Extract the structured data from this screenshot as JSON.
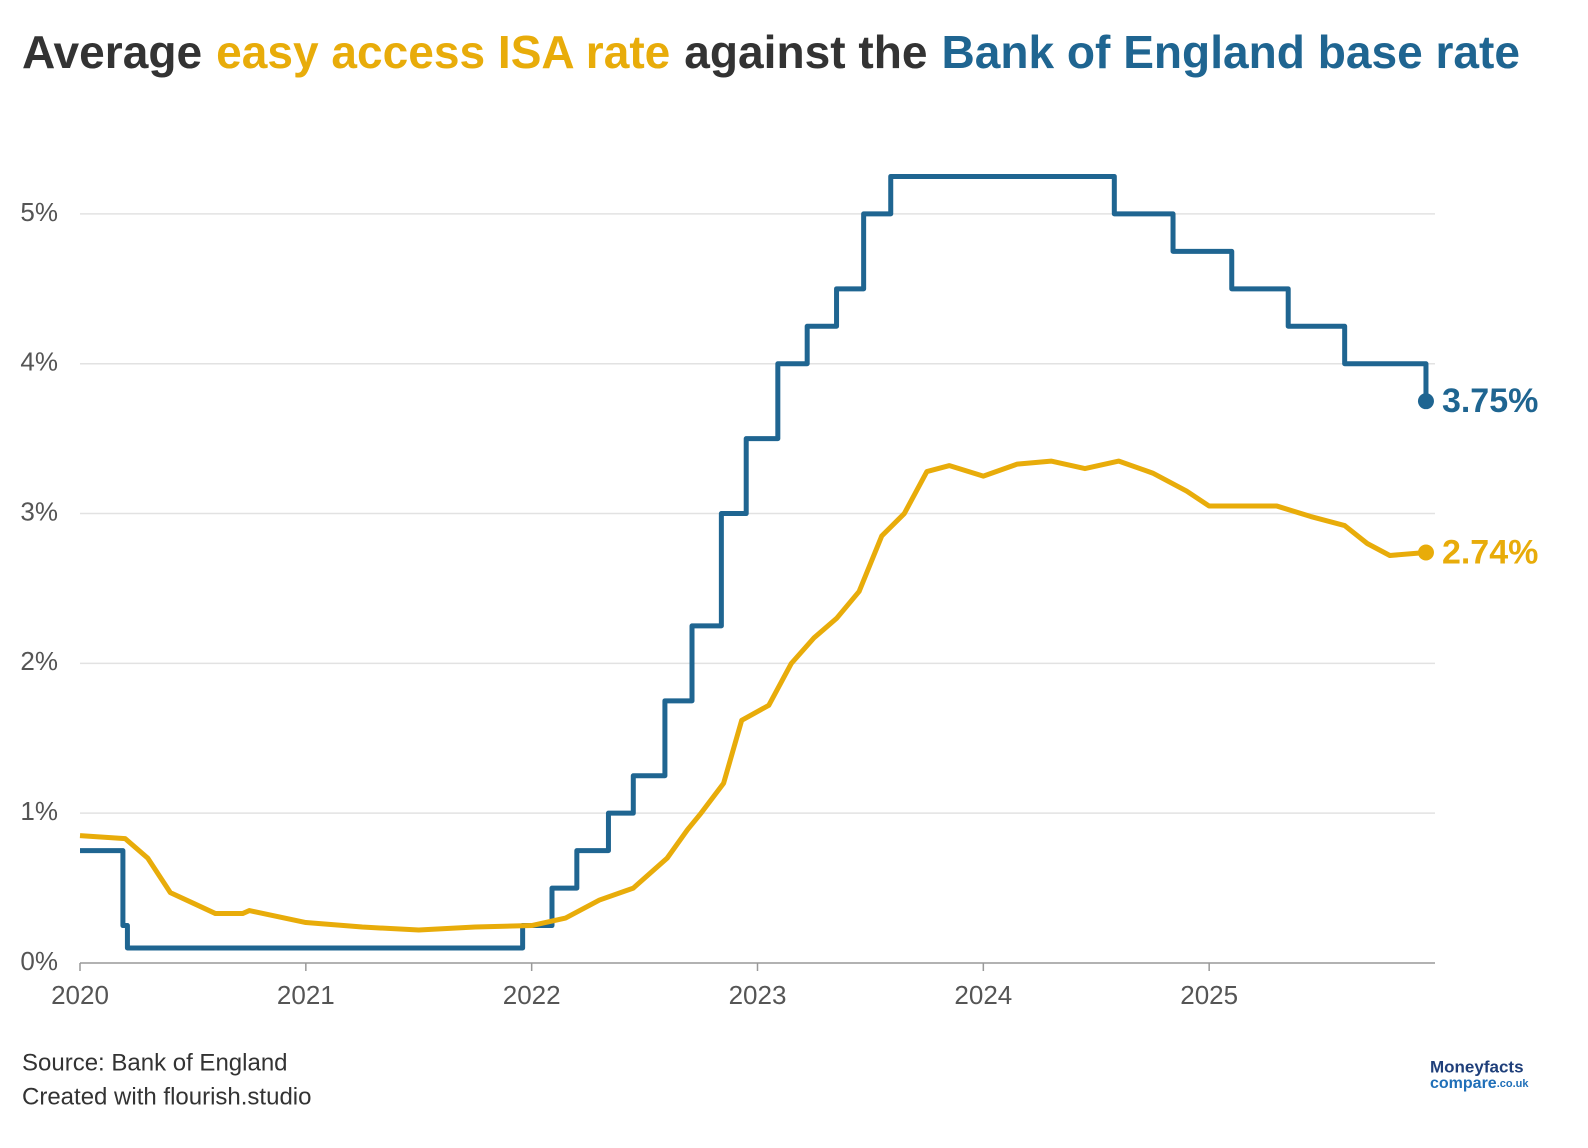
{
  "chart_data": {
    "type": "line",
    "title": [
      "Average",
      "easy access ISA rate",
      "against the",
      "Bank of England base rate"
    ],
    "title_colors": [
      "#333333",
      "#e8ac0a",
      "#333333",
      "#1f6591"
    ],
    "xlim": [
      2020,
      2026
    ],
    "xticks": [
      2020,
      2021,
      2022,
      2023,
      2024,
      2025
    ],
    "ylim": [
      0,
      5.5
    ],
    "yticks": [
      {
        "value": 0,
        "label": "0%"
      },
      {
        "value": 1,
        "label": "1%"
      },
      {
        "value": 2,
        "label": "2%"
      },
      {
        "value": 3,
        "label": "3%"
      },
      {
        "value": 4,
        "label": "4%"
      },
      {
        "value": 5,
        "label": "5%"
      }
    ],
    "grid": true,
    "series": [
      {
        "name": "Bank of England base rate",
        "color": "#1f6591",
        "end_label": "3.75%",
        "x": [
          2020,
          2020.19,
          2020.19,
          2020.21,
          2020.21,
          2021.96,
          2021.96,
          2022.09,
          2022.09,
          2022.2,
          2022.2,
          2022.34,
          2022.34,
          2022.45,
          2022.45,
          2022.59,
          2022.59,
          2022.71,
          2022.71,
          2022.84,
          2022.84,
          2022.95,
          2022.95,
          2023.09,
          2023.09,
          2023.22,
          2023.22,
          2023.35,
          2023.35,
          2023.47,
          2023.47,
          2023.59,
          2023.59,
          2024.58,
          2024.58,
          2024.84,
          2024.84,
          2025.1,
          2025.1,
          2025.35,
          2025.35,
          2025.6,
          2025.6,
          2025.96,
          2025.96
        ],
        "values": [
          0.75,
          0.75,
          0.25,
          0.25,
          0.1,
          0.1,
          0.25,
          0.25,
          0.5,
          0.5,
          0.75,
          0.75,
          1,
          1,
          1.25,
          1.25,
          1.75,
          1.75,
          2.25,
          2.25,
          3,
          3,
          3.5,
          3.5,
          4,
          4,
          4.25,
          4.25,
          4.5,
          4.5,
          5,
          5,
          5.25,
          5.25,
          5,
          5,
          4.75,
          4.75,
          4.5,
          4.5,
          4.25,
          4.25,
          4,
          4,
          3.75
        ]
      },
      {
        "name": "easy access ISA rate",
        "color": "#e8ac0a",
        "end_label": "2.74%",
        "x": [
          2020,
          2020.2,
          2020.3,
          2020.4,
          2020.5,
          2020.6,
          2020.72,
          2020.75,
          2021,
          2021.25,
          2021.5,
          2021.75,
          2022,
          2022.15,
          2022.3,
          2022.45,
          2022.6,
          2022.69,
          2022.75,
          2022.85,
          2022.93,
          2023.05,
          2023.15,
          2023.25,
          2023.35,
          2023.45,
          2023.55,
          2023.65,
          2023.75,
          2023.85,
          2024,
          2024.15,
          2024.3,
          2024.45,
          2024.6,
          2024.75,
          2024.9,
          2025,
          2025.15,
          2025.3,
          2025.45,
          2025.6,
          2025.7,
          2025.8,
          2025.96
        ],
        "values": [
          0.85,
          0.83,
          0.7,
          0.47,
          0.4,
          0.33,
          0.33,
          0.35,
          0.27,
          0.24,
          0.22,
          0.24,
          0.25,
          0.3,
          0.42,
          0.5,
          0.7,
          0.89,
          1.0,
          1.2,
          1.62,
          1.72,
          2.0,
          2.17,
          2.3,
          2.48,
          2.85,
          3.0,
          3.28,
          3.32,
          3.25,
          3.33,
          3.35,
          3.3,
          3.35,
          3.27,
          3.15,
          3.05,
          3.05,
          3.05,
          2.98,
          2.92,
          2.8,
          2.72,
          2.74
        ]
      }
    ],
    "source": "Source: Bank of England",
    "credit": "Created with flourish.studio",
    "logo": [
      "Moneyfacts",
      "compare",
      ".co.uk"
    ]
  }
}
